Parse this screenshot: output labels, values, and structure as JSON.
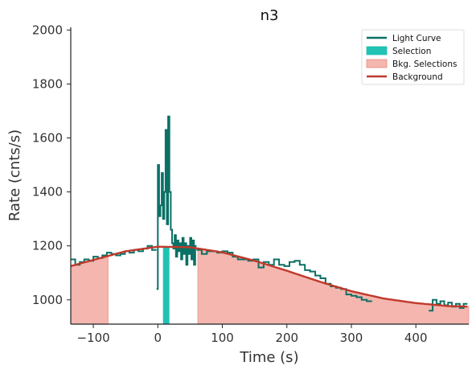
{
  "chart_data": {
    "type": "line",
    "title": "n3",
    "xlabel": "Time (s)",
    "ylabel": "Rate (cnts/s)",
    "xlim": [
      -135,
      482
    ],
    "ylim": [
      910,
      2010
    ],
    "xticks": [
      -100,
      0,
      100,
      200,
      300,
      400
    ],
    "yticks": [
      1000,
      1200,
      1400,
      1600,
      1800,
      2000
    ],
    "xtick_labels": [
      "−100",
      "0",
      "100",
      "200",
      "300",
      "400"
    ],
    "ytick_labels": [
      "1000",
      "1200",
      "1400",
      "1600",
      "1800",
      "2000"
    ],
    "grid": false,
    "legend_position": "top-right",
    "legend": [
      {
        "label": "Light Curve",
        "kind": "line",
        "color": "#0b7065"
      },
      {
        "label": "Selection",
        "kind": "patch",
        "color": "#20c2b3"
      },
      {
        "label": "Bkg. Selections",
        "kind": "patch",
        "color": "#f4b6ae",
        "edge": "#ec8a80"
      },
      {
        "label": "Background",
        "kind": "line",
        "color": "#c0392b"
      }
    ],
    "colors": {
      "light_curve": "#0b7065",
      "selection": "#20c2b3",
      "bkg_fill": "#f4b6ae",
      "background_line": "#c0392b"
    },
    "selection": [
      8,
      18
    ],
    "bkg_selections": [
      [
        -135,
        -77
      ],
      [
        62,
        482
      ]
    ],
    "background": {
      "x": [
        -135,
        -100,
        -50,
        0,
        50,
        100,
        150,
        200,
        250,
        300,
        350,
        400,
        450,
        482
      ],
      "y": [
        1125,
        1148,
        1180,
        1197,
        1195,
        1176,
        1145,
        1108,
        1068,
        1032,
        1005,
        988,
        977,
        975
      ]
    },
    "light_curve_coarse": {
      "edges": [
        -135,
        -128,
        -121,
        -114,
        -107,
        -100,
        -93,
        -86,
        -79,
        -72,
        -65,
        -58,
        -51,
        -44,
        -37,
        -30,
        -23,
        -16,
        -9,
        -2
      ],
      "values": [
        1150,
        1130,
        1140,
        1150,
        1145,
        1160,
        1155,
        1165,
        1175,
        1170,
        1165,
        1170,
        1180,
        1175,
        1185,
        1180,
        1190,
        1200,
        1185
      ]
    },
    "light_curve_fine": {
      "edges": [
        -2,
        0,
        2,
        4,
        6,
        8,
        10,
        12,
        14,
        16,
        18,
        20,
        22,
        24,
        26,
        28,
        30,
        32,
        34,
        36,
        38,
        40,
        42,
        44,
        46,
        48,
        50,
        52,
        54,
        56,
        58,
        60
      ],
      "values": [
        1040,
        1500,
        1310,
        1350,
        1470,
        1300,
        1400,
        1630,
        1280,
        1680,
        1400,
        1260,
        1210,
        1190,
        1240,
        1160,
        1220,
        1180,
        1210,
        1150,
        1230,
        1170,
        1210,
        1130,
        1200,
        1170,
        1230,
        1150,
        1220,
        1130,
        1200
      ]
    },
    "light_curve_tail": {
      "edges": [
        60,
        68,
        76,
        84,
        92,
        100,
        108,
        116,
        124,
        132,
        140,
        148,
        156,
        164,
        172,
        180,
        188,
        196,
        204,
        212,
        220,
        228,
        236,
        244,
        252,
        260,
        268,
        276,
        284,
        292,
        300,
        308,
        316,
        324,
        332
      ],
      "values": [
        1185,
        1170,
        1180,
        1180,
        1175,
        1180,
        1175,
        1160,
        1150,
        1150,
        1145,
        1150,
        1120,
        1140,
        1130,
        1150,
        1130,
        1125,
        1140,
        1145,
        1130,
        1110,
        1105,
        1090,
        1080,
        1060,
        1050,
        1045,
        1040,
        1020,
        1015,
        1010,
        1000,
        995
      ]
    },
    "light_curve_late": {
      "edges": [
        420,
        426,
        432,
        438,
        444,
        450,
        456,
        462,
        468,
        474,
        480
      ],
      "values": [
        960,
        1000,
        985,
        995,
        980,
        990,
        975,
        985,
        970,
        985
      ]
    }
  }
}
